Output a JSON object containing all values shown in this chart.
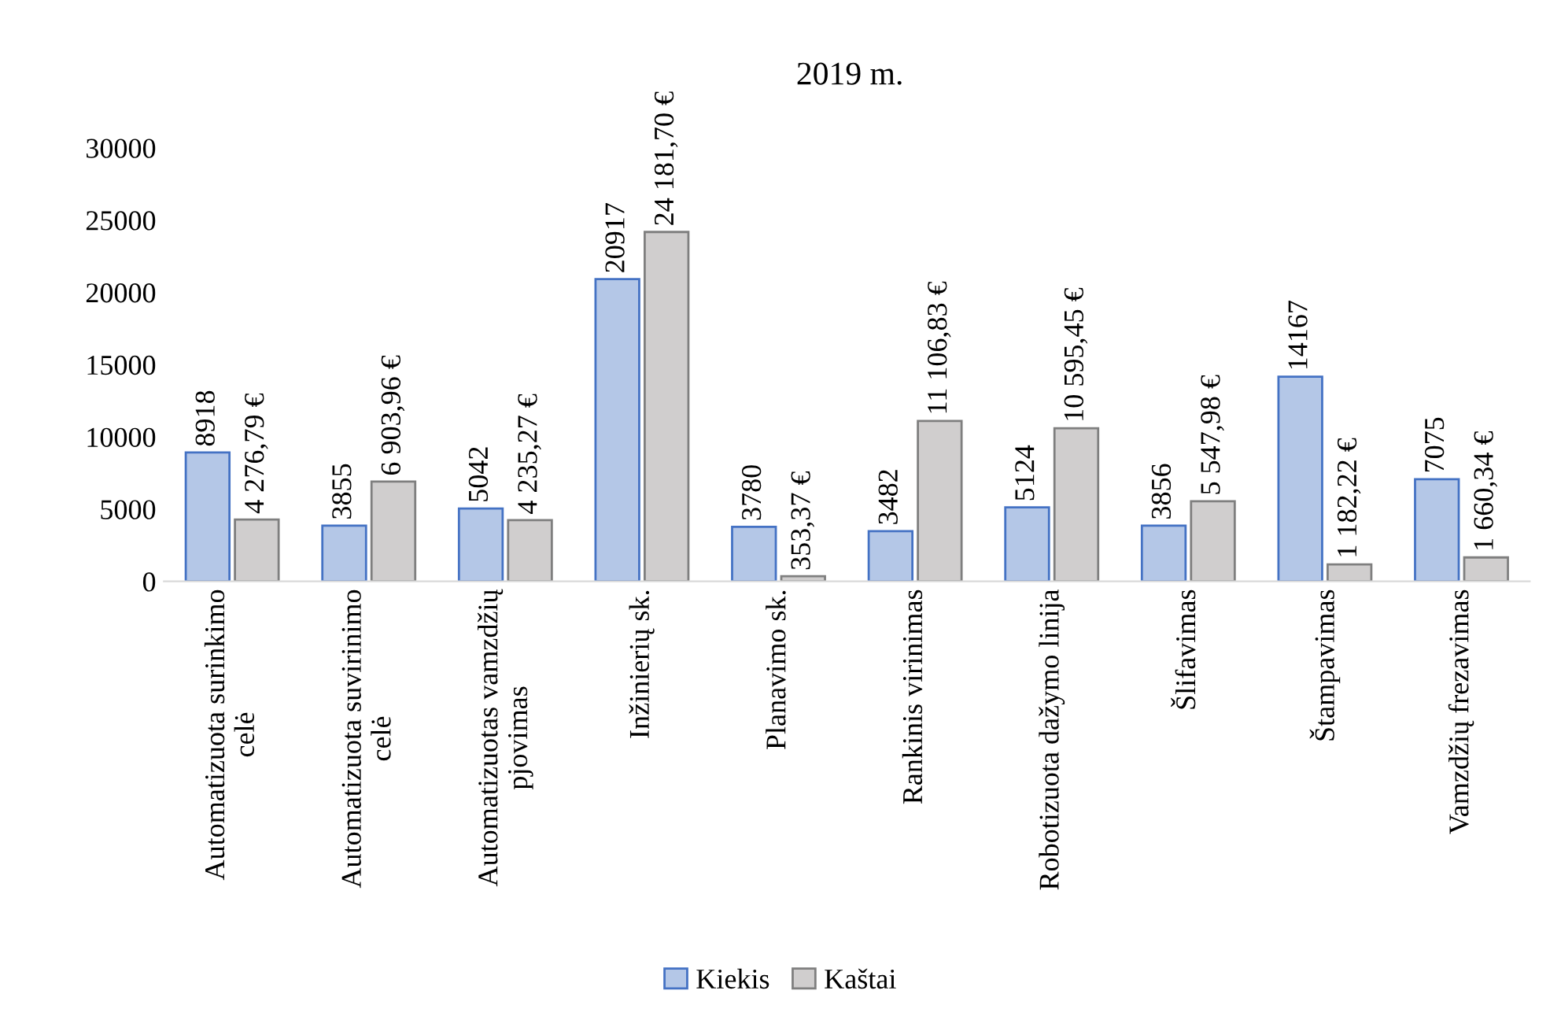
{
  "chart_data": {
    "type": "bar",
    "title": "2019 m.",
    "categories": [
      "Automatizuota surinkimo celė",
      "Automatizuota suvirinimo celė",
      "Automatizuotas vamzdžių pjovimas",
      "Inžinierių sk.",
      "Planavimo sk.",
      "Rankinis virinimas",
      "Robotizuota dažymo linija",
      "Šlifavimas",
      "Štampavimas",
      "Vamzdžių frezavimas"
    ],
    "series": [
      {
        "name": "Kiekis",
        "color": "#b4c7e7",
        "values": [
          8918,
          3855,
          5042,
          20917,
          3780,
          3482,
          5124,
          3856,
          14167,
          7075
        ],
        "value_labels": [
          "8918",
          "3855",
          "5042",
          "20917",
          "3780",
          "3482",
          "5124",
          "3856",
          "14167",
          "7075"
        ]
      },
      {
        "name": "Kaštai",
        "color": "#d0cece",
        "values": [
          4276.79,
          6903.96,
          4235.27,
          24181.7,
          353.37,
          11106.83,
          10595.45,
          5547.98,
          1182.22,
          1660.34
        ],
        "value_labels": [
          "4 276,79 €",
          "6 903,96 €",
          "4 235,27 €",
          "24 181,70 €",
          "353,37 €",
          "11 106,83 €",
          "10 595,45 €",
          "5 547,98 €",
          "1 182,22 €",
          "1 660,34 €"
        ]
      }
    ],
    "ylim": [
      0,
      30000
    ],
    "yticks": [
      0,
      5000,
      10000,
      15000,
      20000,
      25000,
      30000
    ],
    "grid": false,
    "legend": "bottom"
  }
}
